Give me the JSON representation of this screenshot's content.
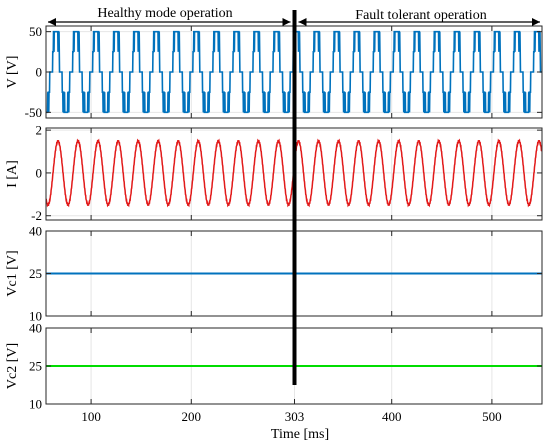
{
  "chart_data": [
    {
      "type": "line",
      "ylabel": "V [V]",
      "yticks": [
        -50,
        0,
        50
      ],
      "ylim": [
        -57,
        57
      ],
      "xlim": [
        55,
        550
      ],
      "grid": true,
      "signal": {
        "shape": "multilevel staircase PWM voltage",
        "levels": [
          -50,
          -25,
          0,
          25,
          50
        ],
        "period_ms": 20,
        "color": "#0072BD"
      }
    },
    {
      "type": "line",
      "ylabel": "I [A]",
      "yticks": [
        -2,
        0,
        2
      ],
      "ylim": [
        -2.2,
        2.1
      ],
      "xlim": [
        55,
        550
      ],
      "grid": true,
      "signal": {
        "shape": "sinusoid",
        "amplitude": 1.5,
        "period_ms": 20,
        "color": "#E21A1A"
      }
    },
    {
      "type": "line",
      "ylabel": "Vc1 [V]",
      "yticks": [
        10,
        25,
        40
      ],
      "ylim": [
        10,
        40
      ],
      "xlim": [
        55,
        550
      ],
      "grid": true,
      "series": [
        {
          "x": [
            55,
            550
          ],
          "y": [
            25,
            25
          ],
          "color": "#0072BD"
        }
      ]
    },
    {
      "type": "line",
      "ylabel": "Vc2 [V]",
      "yticks": [
        10,
        25,
        40
      ],
      "ylim": [
        10,
        40
      ],
      "xlim": [
        55,
        550
      ],
      "grid": true,
      "xlabel": "Time [ms]",
      "xticks": [
        100,
        200,
        303,
        400,
        500
      ],
      "series": [
        {
          "x": [
            55,
            550
          ],
          "y": [
            25,
            25
          ],
          "color": "#00DD00"
        }
      ]
    }
  ],
  "annotations": {
    "fault_time_ms": 303,
    "left_label": "Healthy mode operation",
    "right_label": "Fault tolerant operation"
  }
}
